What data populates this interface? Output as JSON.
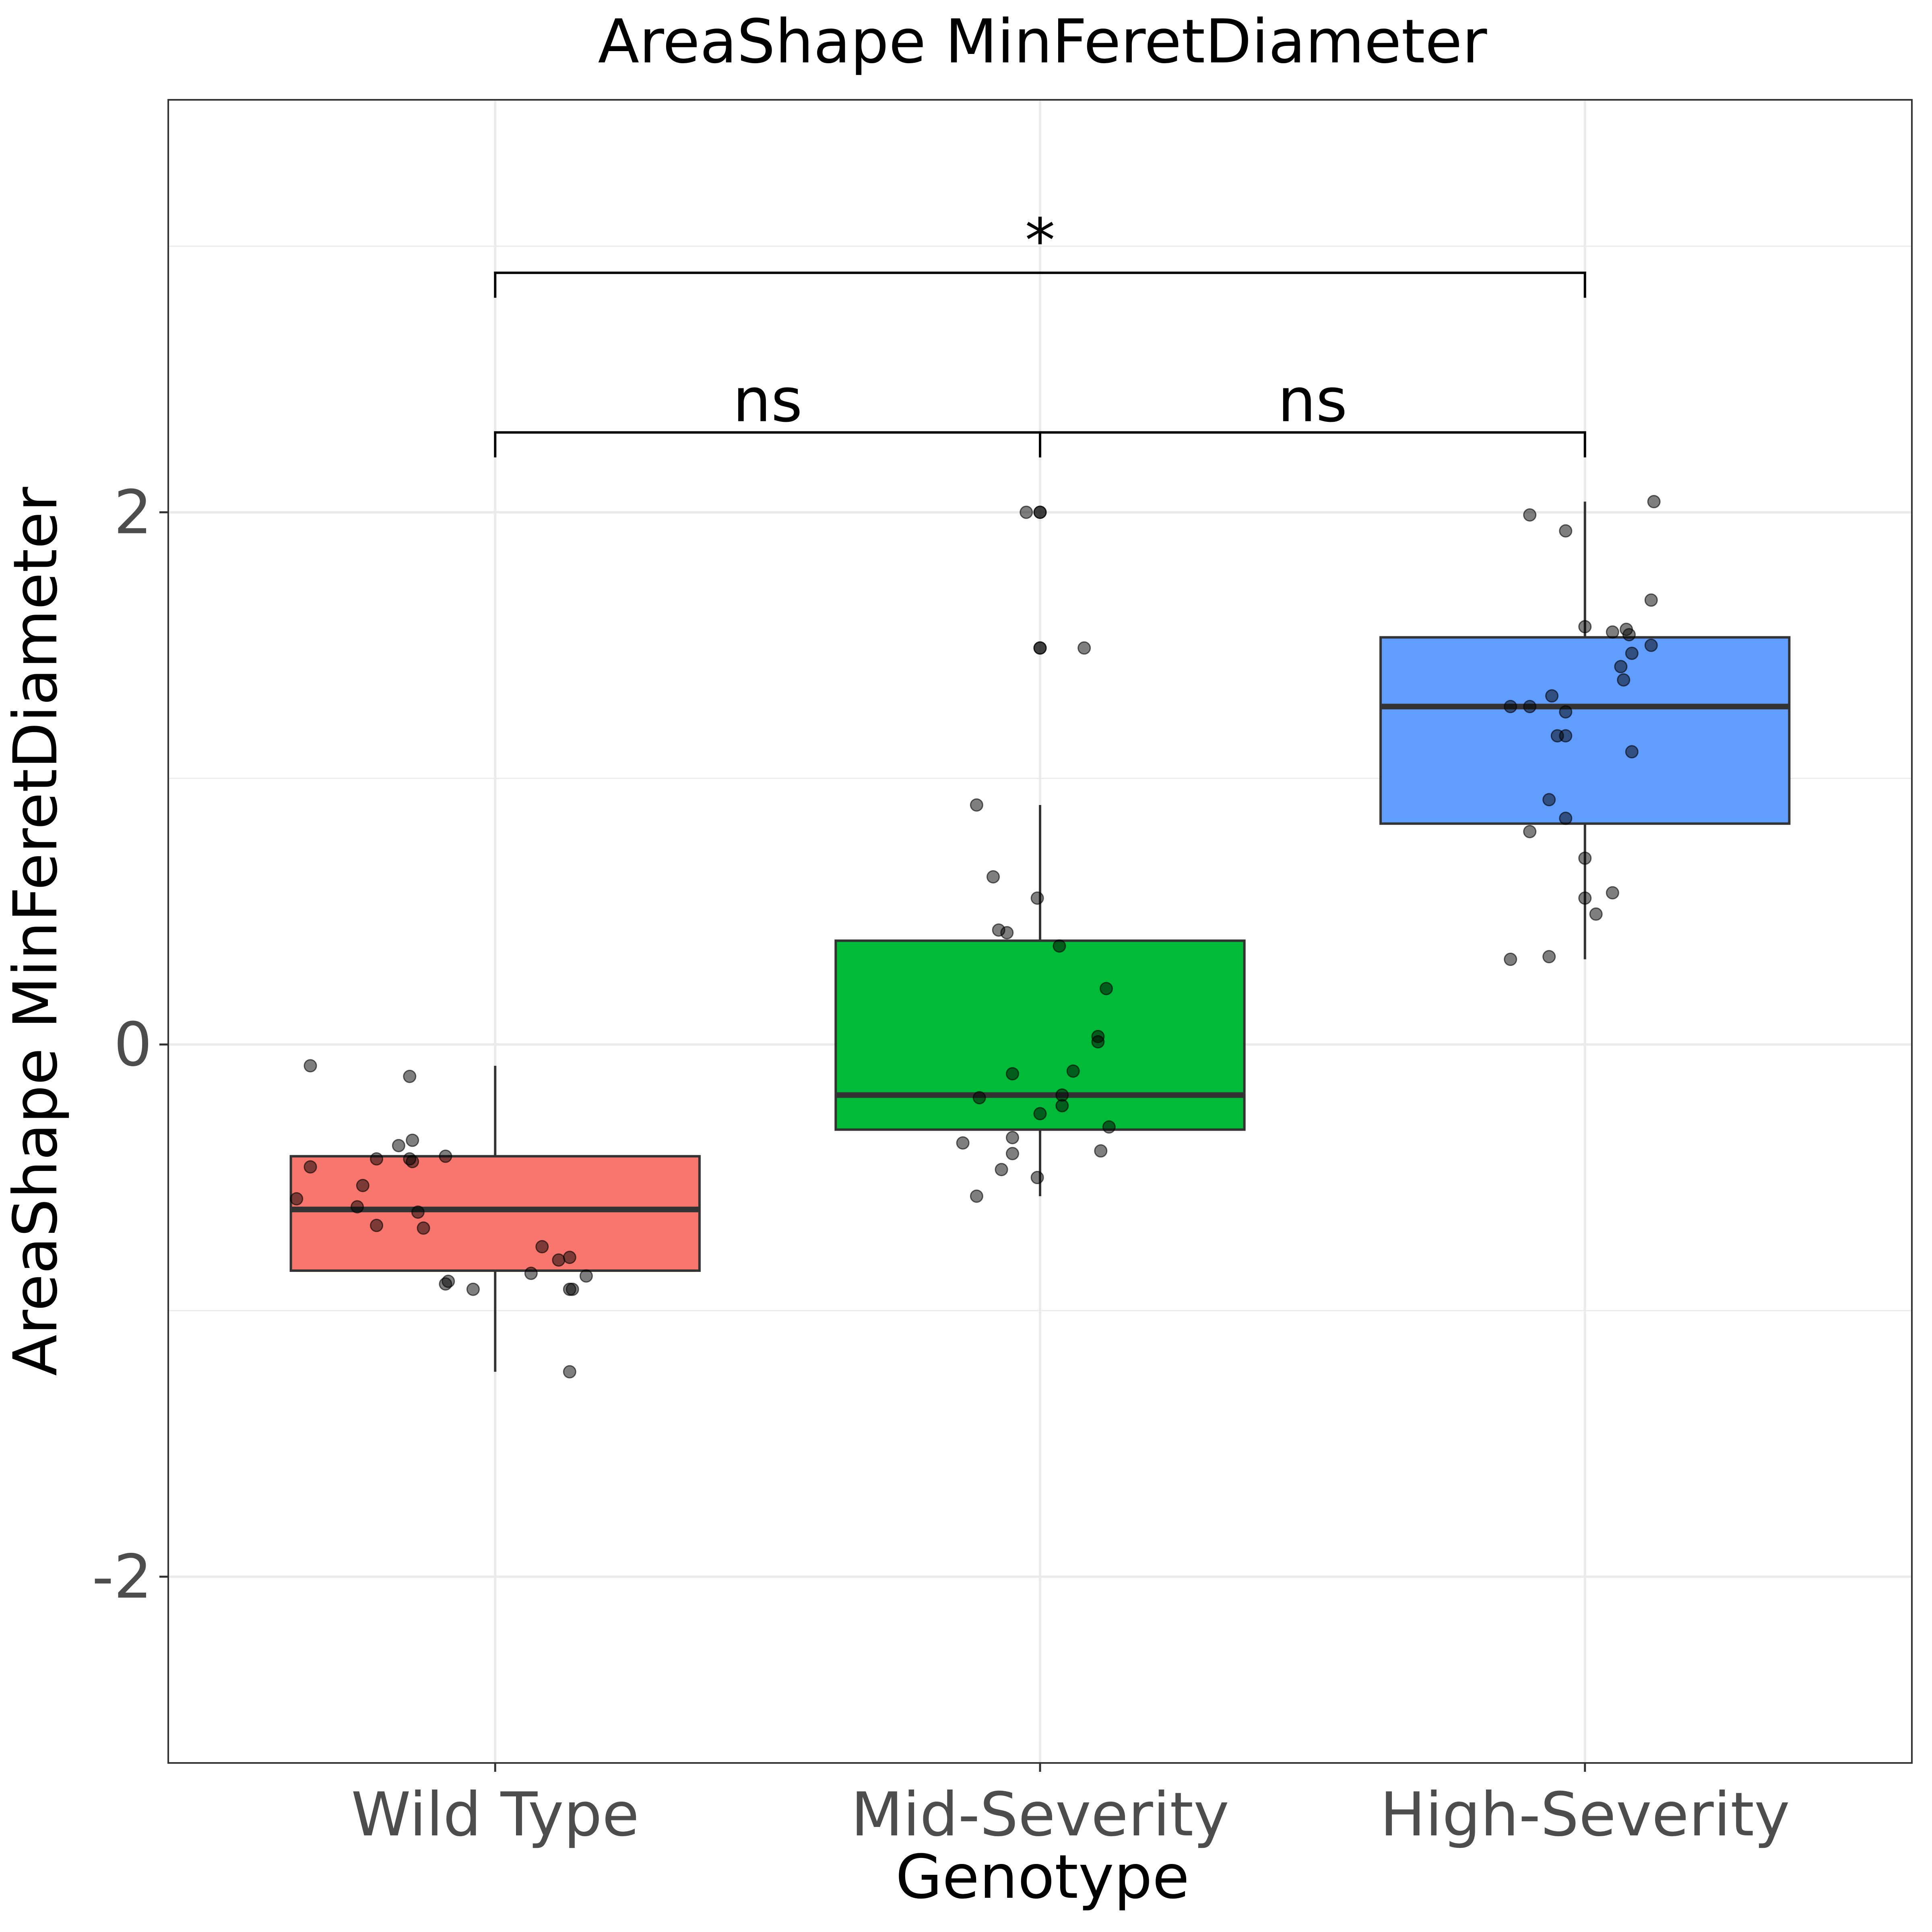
{
  "chart_data": {
    "type": "box",
    "title": "AreaShape MinFeretDiameter",
    "xlabel": "Genotype",
    "ylabel": "AreaShape MinFeretDiameter",
    "ylim": [
      -2.7,
      3.55
    ],
    "yticks": [
      -2,
      0,
      2
    ],
    "grid": true,
    "legend": "none",
    "categories": [
      "Wild Type",
      "Mid-Severity",
      "High-Severity"
    ],
    "colors": [
      "#f8766d",
      "#00ba38",
      "#619cff"
    ],
    "boxes": [
      {
        "whisker_low": -1.23,
        "q1": -0.85,
        "median": -0.62,
        "q3": -0.42,
        "whisker_high": -0.08
      },
      {
        "whisker_low": -0.57,
        "q1": -0.32,
        "median": -0.19,
        "q3": 0.39,
        "whisker_high": 0.9
      },
      {
        "whisker_low": 0.32,
        "q1": 0.83,
        "median": 1.27,
        "q3": 1.53,
        "whisker_high": 2.04
      }
    ],
    "points": [
      [
        [
          -0.08,
          -0.67
        ],
        [
          -0.12,
          -0.31
        ],
        [
          -0.38,
          -0.35
        ],
        [
          -0.36,
          -0.3
        ],
        [
          -0.46,
          -0.67
        ],
        [
          -0.58,
          -0.72
        ],
        [
          -0.61,
          -0.5
        ],
        [
          -0.43,
          -0.43
        ],
        [
          -0.53,
          -0.48
        ],
        [
          -0.43,
          -0.31
        ],
        [
          -0.44,
          -0.3
        ],
        [
          -0.42,
          -0.18
        ],
        [
          -0.63,
          -0.28
        ],
        [
          -0.68,
          -0.43
        ],
        [
          -0.69,
          -0.26
        ],
        [
          -0.81,
          0.23
        ],
        [
          -0.9,
          -0.18
        ],
        [
          -0.89,
          -0.17
        ],
        [
          -0.92,
          -0.08
        ],
        [
          -0.76,
          0.17
        ],
        [
          -0.86,
          0.13
        ],
        [
          -0.8,
          0.27
        ],
        [
          -0.87,
          0.33
        ],
        [
          -0.92,
          0.27
        ],
        [
          -0.92,
          0.28
        ],
        [
          -1.23,
          0.27
        ]
      ],
      [
        [
          2.0,
          -0.05
        ],
        [
          2.0,
          0.0
        ],
        [
          2.0,
          0.0
        ],
        [
          1.49,
          0.0
        ],
        [
          1.49,
          0.0
        ],
        [
          1.49,
          0.16
        ],
        [
          0.9,
          -0.23
        ],
        [
          0.63,
          -0.17
        ],
        [
          0.55,
          -0.01
        ],
        [
          0.43,
          -0.15
        ],
        [
          0.42,
          -0.12
        ],
        [
          0.37,
          0.07
        ],
        [
          0.21,
          0.24
        ],
        [
          0.03,
          0.21
        ],
        [
          0.01,
          0.21
        ],
        [
          -0.11,
          -0.1
        ],
        [
          -0.1,
          0.12
        ],
        [
          -0.19,
          0.08
        ],
        [
          -0.2,
          -0.22
        ],
        [
          -0.23,
          0.08
        ],
        [
          -0.26,
          0.0
        ],
        [
          -0.31,
          0.25
        ],
        [
          -0.35,
          -0.1
        ],
        [
          -0.37,
          -0.28
        ],
        [
          -0.41,
          -0.1
        ],
        [
          -0.4,
          0.22
        ],
        [
          -0.47,
          -0.14
        ],
        [
          -0.5,
          -0.01
        ],
        [
          -0.57,
          -0.23
        ]
      ],
      [
        [
          1.99,
          -0.2
        ],
        [
          1.93,
          -0.07
        ],
        [
          2.04,
          0.25
        ],
        [
          1.67,
          0.24
        ],
        [
          1.57,
          0.0
        ],
        [
          1.55,
          0.1
        ],
        [
          1.56,
          0.15
        ],
        [
          1.54,
          0.16
        ],
        [
          1.5,
          0.24
        ],
        [
          1.47,
          0.17
        ],
        [
          1.42,
          0.13
        ],
        [
          1.37,
          0.14
        ],
        [
          1.31,
          -0.12
        ],
        [
          1.27,
          -0.27
        ],
        [
          1.27,
          -0.2
        ],
        [
          1.25,
          -0.07
        ],
        [
          1.16,
          -0.1
        ],
        [
          1.16,
          -0.07
        ],
        [
          1.1,
          0.17
        ],
        [
          0.92,
          -0.13
        ],
        [
          0.85,
          -0.07
        ],
        [
          0.8,
          -0.2
        ],
        [
          0.7,
          0.0
        ],
        [
          0.55,
          0.0
        ],
        [
          0.57,
          0.1
        ],
        [
          0.49,
          0.04
        ],
        [
          0.32,
          -0.27
        ],
        [
          0.33,
          -0.13
        ]
      ]
    ],
    "comparisons": [
      {
        "from": 0,
        "to": 1,
        "y": 2.3,
        "label": "ns"
      },
      {
        "from": 1,
        "to": 2,
        "y": 2.3,
        "label": "ns"
      },
      {
        "from": 0,
        "to": 2,
        "y": 2.9,
        "label": "*"
      }
    ]
  }
}
